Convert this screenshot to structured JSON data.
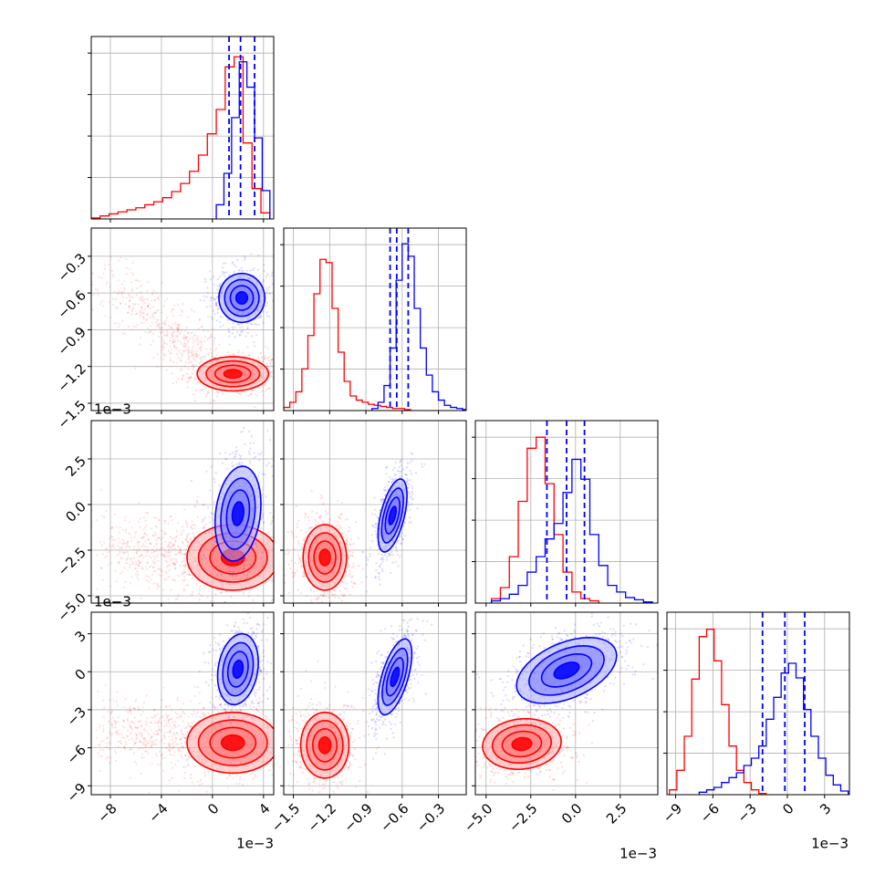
{
  "chart_data": {
    "type": "corner",
    "title": "",
    "colors": {
      "series_a": "#ff0000",
      "series_b": "#0000ff",
      "grid": "#b0b0b0",
      "axes": "#000000"
    },
    "series": [
      {
        "name": "",
        "color": "#ff0000"
      },
      {
        "name": "",
        "color": "#0000ff"
      }
    ],
    "params": [
      {
        "xlim": [
          -9.5,
          4.8
        ],
        "ticks": [
          -8,
          -4,
          0,
          4
        ],
        "tick_labels": [
          "−8",
          "−4",
          "0",
          "4"
        ],
        "scale_label": "1e−3"
      },
      {
        "xlim": [
          -1.58,
          -0.07
        ],
        "ticks": [
          -1.5,
          -1.2,
          -0.9,
          -0.6,
          -0.3
        ],
        "tick_labels": [
          "−1.5",
          "−1.2",
          "−0.9",
          "−0.6",
          "−0.3"
        ],
        "scale_label": "1e−3"
      },
      {
        "xlim": [
          -5.6,
          4.6
        ],
        "ticks": [
          -5.0,
          -2.5,
          0.0,
          2.5
        ],
        "tick_labels": [
          "−5.0",
          "−2.5",
          "0.0",
          "2.5"
        ],
        "scale_label": "1e−3"
      },
      {
        "xlim": [
          -9.7,
          5.0
        ],
        "ticks": [
          -9,
          -6,
          -3,
          0,
          3
        ],
        "tick_labels": [
          "−9",
          "−6",
          "−3",
          "0",
          "3"
        ],
        "scale_label": "1e−3"
      }
    ],
    "y_ranges": [
      null,
      [
        -1.56,
        -0.07
      ],
      [
        -5.4,
        4.6
      ],
      [
        -9.7,
        4.7
      ]
    ],
    "marginals": [
      {
        "quantiles_blue": [
          1.3,
          2.2,
          3.3
        ],
        "red": {
          "edges": [
            -9.5,
            -8.8,
            -8.1,
            -7.4,
            -6.7,
            -6.0,
            -5.3,
            -4.6,
            -3.9,
            -3.2,
            -2.5,
            -1.8,
            -1.1,
            -0.4,
            0.3,
            1.0,
            1.7,
            2.4,
            3.1,
            3.8,
            4.5
          ],
          "counts": [
            1,
            3,
            5,
            7,
            9,
            11,
            14,
            17,
            21,
            27,
            35,
            47,
            63,
            84,
            108,
            150,
            160,
            75,
            30,
            6
          ]
        },
        "blue": {
          "edges": [
            0.3,
            0.9,
            1.5,
            2.1,
            2.7,
            3.3,
            3.9,
            4.5
          ],
          "counts": [
            14,
            45,
            100,
            155,
            130,
            80,
            28
          ]
        },
        "ymax": 180
      },
      {
        "quantiles_blue": [
          -0.7,
          -0.645,
          -0.55
        ],
        "red": {
          "edges": [
            -1.58,
            -1.53,
            -1.48,
            -1.43,
            -1.38,
            -1.33,
            -1.28,
            -1.23,
            -1.18,
            -1.13,
            -1.08,
            -1.03,
            -0.98,
            -0.93,
            -0.88,
            -0.83,
            -0.78,
            -0.73,
            -0.68,
            -0.63,
            -0.58,
            -0.53
          ],
          "counts": [
            3,
            8,
            18,
            40,
            72,
            112,
            145,
            142,
            98,
            56,
            28,
            14,
            10,
            8,
            6,
            5,
            4,
            3,
            2,
            2,
            1
          ]
        },
        "blue": {
          "edges": [
            -0.85,
            -0.8,
            -0.75,
            -0.7,
            -0.65,
            -0.6,
            -0.55,
            -0.5,
            -0.45,
            -0.4,
            -0.35,
            -0.3,
            -0.25,
            -0.2,
            -0.15,
            -0.1,
            -0.07
          ],
          "counts": [
            2,
            8,
            24,
            60,
            125,
            160,
            148,
            98,
            60,
            34,
            18,
            10,
            5,
            3,
            2,
            1
          ]
        },
        "ymax": 175
      },
      {
        "quantiles_blue": [
          -1.6,
          -0.5,
          0.5
        ],
        "red": {
          "edges": [
            -4.7,
            -4.2,
            -3.7,
            -3.2,
            -2.7,
            -2.2,
            -1.7,
            -1.2,
            -0.7,
            -0.2,
            0.3,
            0.8,
            1.3
          ],
          "counts": [
            4,
            14,
            42,
            92,
            140,
            150,
            108,
            62,
            28,
            10,
            4,
            2
          ]
        },
        "blue": {
          "edges": [
            -4.7,
            -4.2,
            -3.7,
            -3.2,
            -2.7,
            -2.2,
            -1.7,
            -1.2,
            -0.7,
            -0.2,
            0.3,
            0.8,
            1.3,
            1.8,
            2.3,
            2.8,
            3.3,
            3.8,
            4.3
          ],
          "counts": [
            2,
            4,
            8,
            16,
            28,
            42,
            58,
            72,
            100,
            130,
            112,
            62,
            34,
            16,
            10,
            5,
            3,
            1
          ]
        },
        "ymax": 165
      },
      {
        "quantiles_blue": [
          -2.0,
          -0.2,
          1.4
        ],
        "red": {
          "edges": [
            -9.5,
            -8.9,
            -8.3,
            -7.7,
            -7.1,
            -6.5,
            -5.9,
            -5.3,
            -4.7,
            -4.1,
            -3.5,
            -2.9,
            -2.3,
            -1.7
          ],
          "counts": [
            4,
            20,
            48,
            95,
            130,
            136,
            110,
            74,
            40,
            20,
            10,
            4,
            1
          ]
        },
        "blue": {
          "edges": [
            -7.1,
            -6.5,
            -5.9,
            -5.3,
            -4.7,
            -4.1,
            -3.5,
            -2.9,
            -2.3,
            -1.7,
            -1.1,
            -0.5,
            0.1,
            0.7,
            1.3,
            1.9,
            2.5,
            3.1,
            3.7,
            4.3,
            4.9
          ],
          "counts": [
            2,
            4,
            6,
            10,
            14,
            18,
            24,
            30,
            40,
            62,
            80,
            100,
            108,
            96,
            70,
            48,
            30,
            16,
            8,
            3
          ]
        },
        "ymax": 150
      }
    ],
    "pairs": [
      {
        "row": 1,
        "col": 0,
        "blue": {
          "center": [
            2.3,
            -0.64
          ],
          "sx": 0.9,
          "sy": 0.1,
          "rho": 0.0,
          "n": 520
        },
        "red": {
          "center": [
            1.6,
            -1.26
          ],
          "sx": 1.4,
          "sy": 0.07,
          "rho": 0.0,
          "n": 460,
          "tail": {
            "from": [
              -8.5,
              -0.4
            ],
            "to": [
              -1.0,
              -1.15
            ],
            "n": 420
          }
        }
      },
      {
        "row": 2,
        "col": 0,
        "blue": {
          "center": [
            2.0,
            -0.5
          ],
          "sx": 0.9,
          "sy": 1.3,
          "rho": 0.2,
          "n": 520
        },
        "red": {
          "center": [
            1.6,
            -2.9
          ],
          "sx": 1.8,
          "sy": 0.9,
          "rho": 0.0,
          "n": 500,
          "tail": {
            "from": [
              -9.0,
              -2.3
            ],
            "to": [
              -2.0,
              -2.6
            ],
            "n": 420
          }
        }
      },
      {
        "row": 2,
        "col": 1,
        "blue": {
          "center": [
            -0.68,
            -0.6
          ],
          "sx": 0.06,
          "sy": 1.0,
          "rho": 0.55,
          "n": 560
        },
        "red": {
          "center": [
            -1.24,
            -2.9
          ],
          "sx": 0.09,
          "sy": 0.9,
          "rho": 0.0,
          "n": 620
        }
      },
      {
        "row": 3,
        "col": 0,
        "blue": {
          "center": [
            2.0,
            0.2
          ],
          "sx": 0.8,
          "sy": 1.4,
          "rho": 0.2,
          "n": 520
        },
        "red": {
          "center": [
            1.6,
            -5.6
          ],
          "sx": 1.8,
          "sy": 1.2,
          "rho": 0.0,
          "n": 500,
          "tail": {
            "from": [
              -9.0,
              -4.5
            ],
            "to": [
              -2.0,
              -5.0
            ],
            "n": 420
          }
        }
      },
      {
        "row": 3,
        "col": 1,
        "blue": {
          "center": [
            -0.66,
            -0.4
          ],
          "sx": 0.07,
          "sy": 1.5,
          "rho": 0.6,
          "n": 560
        },
        "red": {
          "center": [
            -1.24,
            -5.8
          ],
          "sx": 0.1,
          "sy": 1.3,
          "rho": 0.0,
          "n": 620
        }
      },
      {
        "row": 3,
        "col": 2,
        "blue": {
          "center": [
            -0.5,
            0.1
          ],
          "sx": 1.4,
          "sy": 1.3,
          "rho": 0.45,
          "n": 600
        },
        "red": {
          "center": [
            -3.0,
            -5.7
          ],
          "sx": 1.1,
          "sy": 1.0,
          "rho": 0.1,
          "n": 620
        }
      }
    ]
  }
}
